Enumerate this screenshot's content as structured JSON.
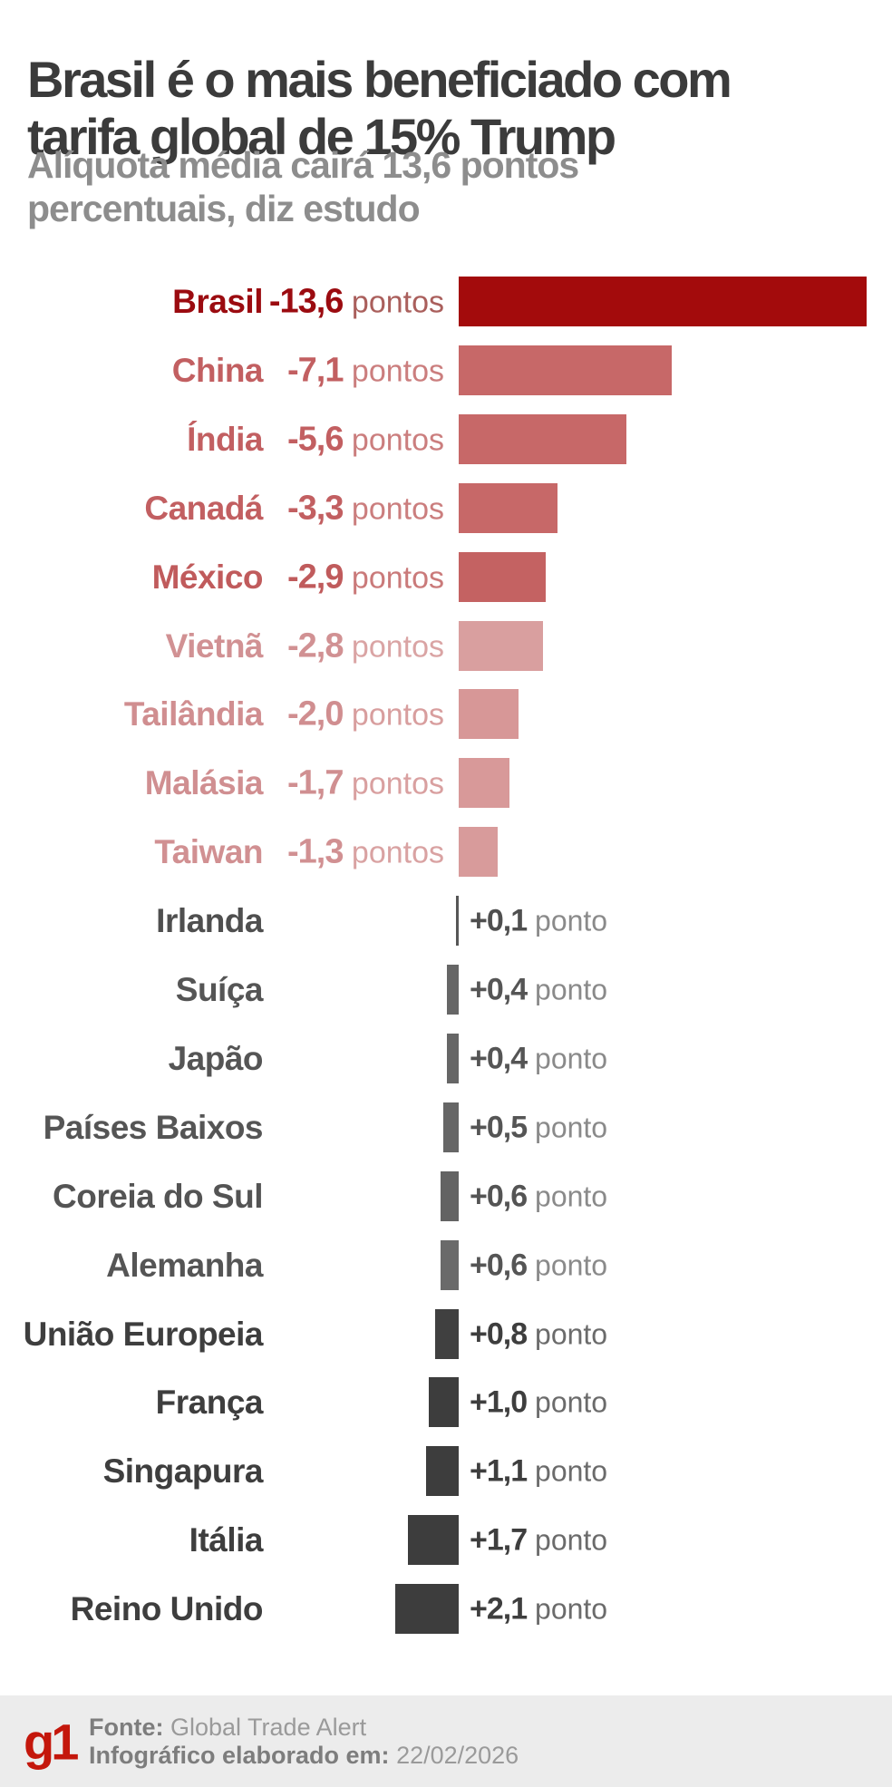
{
  "header": {
    "title": "Brasil é o mais beneficiado com tarifa global de 15% Trump",
    "title_lines": [
      "Brasil é o mais beneficiado com",
      "tarifa global de 15% Trump"
    ],
    "subtitle": "Alíquota média cairá 13,6 pontos percentuais, diz estudo",
    "subtitle_lines": [
      "Alíquota média cairá 13,6 pontos",
      "percentuais, diz estudo"
    ]
  },
  "footer": {
    "logo": "g1",
    "logo_color": "#c4170c",
    "source_label": "Fonte:",
    "source_value": "Global Trade Alert",
    "date_label": "Infográfico elaborado em:",
    "date_value": "22/02/2026"
  },
  "chart_data": {
    "type": "bar",
    "orientation": "horizontal",
    "title": "Brasil é o mais beneficiado com tarifa global de 15% Trump",
    "subtitle": "Alíquota média cairá 13,6 pontos percentuais, diz estudo",
    "unit": "pontos percentuais",
    "value_range": [
      -13.6,
      2.1
    ],
    "grid": false,
    "legend": false,
    "note": "negative bars (tariff cut) drawn in red extending right of baseline; positive bars in gray extending left of baseline",
    "categories": [
      "Brasil",
      "China",
      "Índia",
      "Canadá",
      "México",
      "Vietnã",
      "Tailândia",
      "Malásia",
      "Taiwan",
      "Irlanda",
      "Suíça",
      "Japão",
      "Países Baixos",
      "Coreia do Sul",
      "Alemanha",
      "União Europeia",
      "França",
      "Singapura",
      "Itália",
      "Reino Unido"
    ],
    "values": [
      -13.6,
      -7.1,
      -5.6,
      -3.3,
      -2.9,
      -2.8,
      -2.0,
      -1.7,
      -1.3,
      0.1,
      0.4,
      0.4,
      0.5,
      0.6,
      0.6,
      0.8,
      1.0,
      1.1,
      1.7,
      2.1
    ],
    "rows": [
      {
        "country": "Brasil",
        "value": -13.6,
        "value_label": "-13,6",
        "unit_label": "pontos",
        "bar_color": "#a30b0c",
        "text_color": "#9b0b10",
        "unit_color": "#aa5f5c"
      },
      {
        "country": "China",
        "value": -7.1,
        "value_label": "-7,1",
        "unit_label": "pontos",
        "bar_color": "#c76868",
        "text_color": "#c25f61",
        "unit_color": "#cb7e7e"
      },
      {
        "country": "Índia",
        "value": -5.6,
        "value_label": "-5,6",
        "unit_label": "pontos",
        "bar_color": "#c76868",
        "text_color": "#c25f61",
        "unit_color": "#cb7e7e"
      },
      {
        "country": "Canadá",
        "value": -3.3,
        "value_label": "-3,3",
        "unit_label": "pontos",
        "bar_color": "#c76868",
        "text_color": "#c25f61",
        "unit_color": "#cb7e7e"
      },
      {
        "country": "México",
        "value": -2.9,
        "value_label": "-2,9",
        "unit_label": "pontos",
        "bar_color": "#c46262",
        "text_color": "#c05b5c",
        "unit_color": "#ca7a7a"
      },
      {
        "country": "Vietnã",
        "value": -2.8,
        "value_label": "-2,8",
        "unit_label": "pontos",
        "bar_color": "#d99f9f",
        "text_color": "#d19193",
        "unit_color": "#daa4a4"
      },
      {
        "country": "Tailândia",
        "value": -2.0,
        "value_label": "-2,0",
        "unit_label": "pontos",
        "bar_color": "#d79797",
        "text_color": "#d08e90",
        "unit_color": "#d89e9e"
      },
      {
        "country": "Malásia",
        "value": -1.7,
        "value_label": "-1,7",
        "unit_label": "pontos",
        "bar_color": "#d89999",
        "text_color": "#d08f91",
        "unit_color": "#d9a0a0"
      },
      {
        "country": "Taiwan",
        "value": -1.3,
        "value_label": "-1,3",
        "unit_label": "pontos",
        "bar_color": "#d89b9b",
        "text_color": "#d19092",
        "unit_color": "#d9a2a2"
      },
      {
        "country": "Irlanda",
        "value": 0.1,
        "value_label": "+0,1",
        "unit_label": "ponto",
        "bar_color": "#565656",
        "text_color": "#4f4f4f",
        "unit_color": "#8a8a8a"
      },
      {
        "country": "Suíça",
        "value": 0.4,
        "value_label": "+0,4",
        "unit_label": "ponto",
        "bar_color": "#666666",
        "text_color": "#555555",
        "unit_color": "#8a8a8a"
      },
      {
        "country": "Japão",
        "value": 0.4,
        "value_label": "+0,4",
        "unit_label": "ponto",
        "bar_color": "#666666",
        "text_color": "#555555",
        "unit_color": "#8a8a8a"
      },
      {
        "country": "Países Baixos",
        "value": 0.5,
        "value_label": "+0,5",
        "unit_label": "ponto",
        "bar_color": "#666666",
        "text_color": "#555555",
        "unit_color": "#8a8a8a"
      },
      {
        "country": "Coreia do Sul",
        "value": 0.6,
        "value_label": "+0,6",
        "unit_label": "ponto",
        "bar_color": "#636363",
        "text_color": "#545454",
        "unit_color": "#8a8a8a"
      },
      {
        "country": "Alemanha",
        "value": 0.6,
        "value_label": "+0,6",
        "unit_label": "ponto",
        "bar_color": "#6a6a6a",
        "text_color": "#555555",
        "unit_color": "#8a8a8a"
      },
      {
        "country": "União Europeia",
        "value": 0.8,
        "value_label": "+0,8",
        "unit_label": "ponto",
        "bar_color": "#404040",
        "text_color": "#3e3e3e",
        "unit_color": "#6b6b6b"
      },
      {
        "country": "França",
        "value": 1.0,
        "value_label": "+1,0",
        "unit_label": "ponto",
        "bar_color": "#3d3d3d",
        "text_color": "#3e3e3e",
        "unit_color": "#6b6b6b"
      },
      {
        "country": "Singapura",
        "value": 1.1,
        "value_label": "+1,1",
        "unit_label": "ponto",
        "bar_color": "#3d3d3d",
        "text_color": "#3e3e3e",
        "unit_color": "#6b6b6b"
      },
      {
        "country": "Itália",
        "value": 1.7,
        "value_label": "+1,7",
        "unit_label": "ponto",
        "bar_color": "#3d3d3d",
        "text_color": "#3e3e3e",
        "unit_color": "#6b6b6b"
      },
      {
        "country": "Reino Unido",
        "value": 2.1,
        "value_label": "+2,1",
        "unit_label": "ponto",
        "bar_color": "#3d3d3d",
        "text_color": "#3e3e3e",
        "unit_color": "#6b6b6b"
      }
    ]
  }
}
